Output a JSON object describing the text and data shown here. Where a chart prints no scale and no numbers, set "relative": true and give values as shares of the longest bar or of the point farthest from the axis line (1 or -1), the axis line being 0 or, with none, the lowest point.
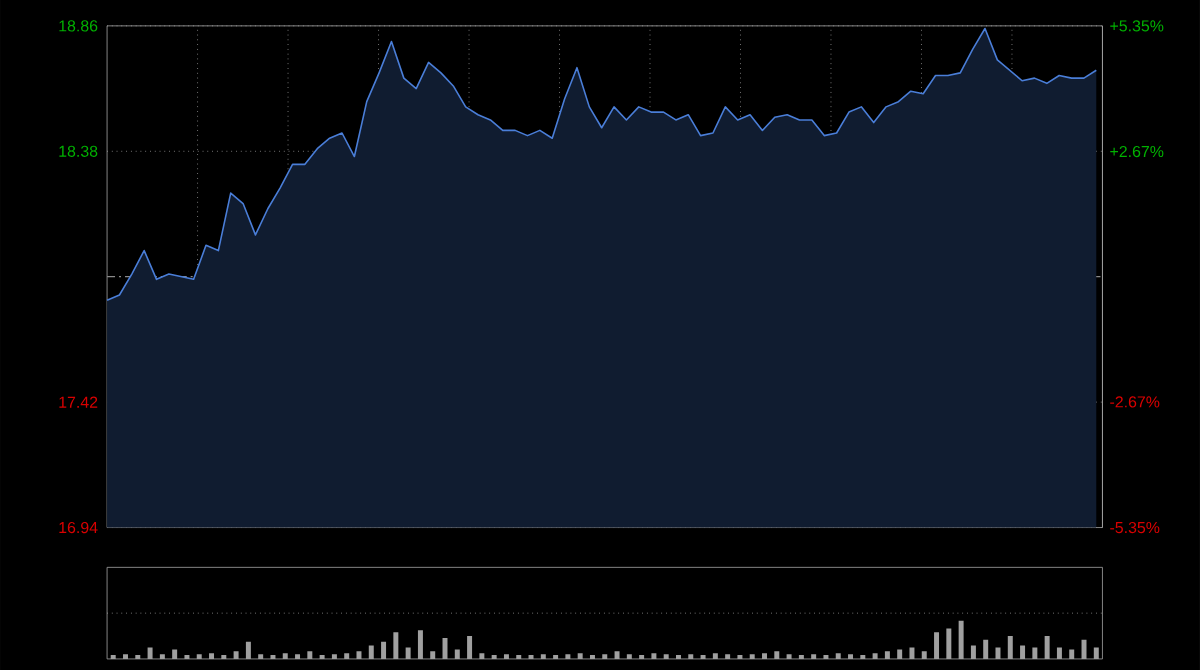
{
  "chart_data": [
    {
      "type": "area",
      "color": "#4a7ed8",
      "marker": "none",
      "line_style": "solid",
      "categories": [
        null,
        null,
        null,
        null,
        null,
        null,
        null,
        null,
        null,
        null,
        null,
        null,
        null,
        null,
        null,
        null,
        null,
        null,
        null,
        null,
        null,
        null,
        null,
        null,
        null,
        null,
        null,
        null,
        null,
        null,
        null,
        null,
        null,
        null,
        null,
        null,
        null,
        null,
        null,
        null,
        null,
        null,
        null,
        null,
        null,
        null,
        null,
        null,
        null,
        null,
        null,
        null,
        null,
        null,
        null,
        null,
        null,
        null,
        null,
        null,
        null,
        null,
        null,
        null,
        null,
        null,
        null,
        null,
        null,
        null,
        null,
        null,
        null,
        null,
        null,
        null,
        null,
        null,
        null,
        null,
        null
      ],
      "values": [
        17.81,
        17.83,
        17.91,
        18.0,
        17.89,
        17.91,
        17.9,
        17.89,
        18.02,
        18.0,
        18.22,
        18.18,
        18.06,
        18.16,
        18.24,
        18.33,
        18.33,
        18.39,
        18.43,
        18.45,
        18.36,
        18.57,
        18.68,
        18.8,
        18.66,
        18.62,
        18.72,
        18.68,
        18.63,
        18.55,
        18.52,
        18.5,
        18.46,
        18.46,
        18.44,
        18.46,
        18.43,
        18.58,
        18.7,
        18.55,
        18.47,
        18.55,
        18.5,
        18.55,
        18.53,
        18.53,
        18.5,
        18.52,
        18.44,
        18.45,
        18.55,
        18.5,
        18.52,
        18.46,
        18.51,
        18.52,
        18.5,
        18.5,
        18.44,
        18.45,
        18.53,
        18.55,
        18.49,
        18.55,
        18.57,
        18.61,
        18.6,
        18.67,
        18.67,
        18.68,
        18.77,
        18.85,
        18.73,
        18.69,
        18.65,
        18.66,
        18.64,
        18.67,
        18.66,
        18.66,
        18.69
      ],
      "ylim": [
        16.94,
        18.86
      ],
      "yticks": [
        {
          "value": 16.94,
          "label": "16.94"
        },
        {
          "value": 17.42,
          "label": "17.42"
        },
        {
          "value": 18.38,
          "label": "18.38"
        },
        {
          "value": 18.86,
          "label": "18.86"
        }
      ],
      "y2lim": [
        -5.35,
        5.35
      ],
      "y2ticks": [
        {
          "value": -5.35,
          "label": "-5.35%"
        },
        {
          "value": -2.67,
          "label": "-2.67%"
        },
        {
          "value": 2.67,
          "label": "+2.67%"
        },
        {
          "value": 5.35,
          "label": "+5.35%"
        }
      ],
      "ref_lines": [
        {
          "axis": "y",
          "value": 17.9,
          "line_style": "dashed",
          "color": "#8a8a8a"
        }
      ],
      "grid": true
    },
    {
      "type": "bar",
      "relative": true,
      "color": "#a0a0a0",
      "grid": true,
      "categories": [
        null,
        null,
        null,
        null,
        null,
        null,
        null,
        null,
        null,
        null,
        null,
        null,
        null,
        null,
        null,
        null,
        null,
        null,
        null,
        null,
        null,
        null,
        null,
        null,
        null,
        null,
        null,
        null,
        null,
        null,
        null,
        null,
        null,
        null,
        null,
        null,
        null,
        null,
        null,
        null,
        null,
        null,
        null,
        null,
        null,
        null,
        null,
        null,
        null,
        null,
        null,
        null,
        null,
        null,
        null,
        null,
        null,
        null,
        null,
        null,
        null,
        null,
        null,
        null,
        null,
        null,
        null,
        null,
        null,
        null,
        null,
        null,
        null,
        null,
        null,
        null,
        null,
        null,
        null,
        null,
        null
      ],
      "values": [
        0.1,
        0.12,
        0.1,
        0.3,
        0.12,
        0.25,
        0.1,
        0.12,
        0.15,
        0.1,
        0.2,
        0.45,
        0.12,
        0.1,
        0.15,
        0.12,
        0.2,
        0.1,
        0.12,
        0.15,
        0.2,
        0.35,
        0.45,
        0.7,
        0.3,
        0.75,
        0.2,
        0.55,
        0.25,
        0.6,
        0.15,
        0.1,
        0.12,
        0.1,
        0.1,
        0.12,
        0.1,
        0.12,
        0.15,
        0.1,
        0.12,
        0.2,
        0.12,
        0.1,
        0.15,
        0.12,
        0.1,
        0.12,
        0.1,
        0.15,
        0.12,
        0.1,
        0.12,
        0.15,
        0.2,
        0.12,
        0.1,
        0.12,
        0.1,
        0.15,
        0.12,
        0.1,
        0.15,
        0.2,
        0.25,
        0.3,
        0.2,
        0.7,
        0.8,
        1.0,
        0.35,
        0.5,
        0.3,
        0.6,
        0.35,
        0.3,
        0.6,
        0.3,
        0.25,
        0.5,
        0.3
      ]
    }
  ]
}
